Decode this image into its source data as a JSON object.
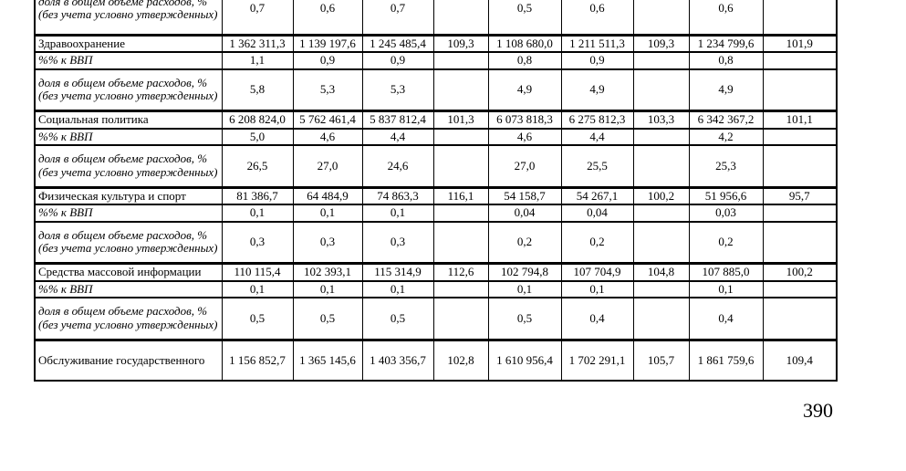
{
  "page": {
    "number": "390"
  },
  "table": {
    "rows": [
      {
        "kind": "share-partial",
        "label": "доля в общем объеме расходов, % (без учета условно утвержденных)",
        "cells": [
          "0,7",
          "0,6",
          "0,7",
          "",
          "0,5",
          "0,6",
          "",
          "0,6",
          ""
        ]
      },
      {
        "kind": "category",
        "label": "Здравоохранение",
        "cells": [
          "1 362 311,3",
          "1 139 197,6",
          "1 245 485,4",
          "109,3",
          "1 108 680,0",
          "1 211 511,3",
          "109,3",
          "1 234 799,6",
          "101,9"
        ]
      },
      {
        "kind": "gdp",
        "label": "%% к ВВП",
        "cells": [
          "1,1",
          "0,9",
          "0,9",
          "",
          "0,8",
          "0,9",
          "",
          "0,8",
          ""
        ]
      },
      {
        "kind": "share",
        "label": "доля в общем объеме расходов, % (без учета условно утвержденных)",
        "cells": [
          "5,8",
          "5,3",
          "5,3",
          "",
          "4,9",
          "4,9",
          "",
          "4,9",
          ""
        ]
      },
      {
        "kind": "category",
        "label": "Социальная политика",
        "cells": [
          "6 208 824,0",
          "5 762 461,4",
          "5 837 812,4",
          "101,3",
          "6 073 818,3",
          "6 275 812,3",
          "103,3",
          "6 342 367,2",
          "101,1"
        ]
      },
      {
        "kind": "gdp",
        "label": "%% к ВВП",
        "cells": [
          "5,0",
          "4,6",
          "4,4",
          "",
          "4,6",
          "4,4",
          "",
          "4,2",
          ""
        ]
      },
      {
        "kind": "share",
        "label": "доля в общем объеме расходов, % (без учета условно утвержденных)",
        "cells": [
          "26,5",
          "27,0",
          "24,6",
          "",
          "27,0",
          "25,5",
          "",
          "25,3",
          ""
        ]
      },
      {
        "kind": "category",
        "label": "Физическая культура и спорт",
        "cells": [
          "81 386,7",
          "64 484,9",
          "74 863,3",
          "116,1",
          "54 158,7",
          "54 267,1",
          "100,2",
          "51 956,6",
          "95,7"
        ]
      },
      {
        "kind": "gdp",
        "label": "%% к ВВП",
        "cells": [
          "0,1",
          "0,1",
          "0,1",
          "",
          "0,04",
          "0,04",
          "",
          "0,03",
          ""
        ]
      },
      {
        "kind": "share",
        "label": "доля в общем объеме расходов, % (без учета условно утвержденных)",
        "cells": [
          "0,3",
          "0,3",
          "0,3",
          "",
          "0,2",
          "0,2",
          "",
          "0,2",
          ""
        ]
      },
      {
        "kind": "category",
        "label": "Средства массовой информации",
        "cells": [
          "110 115,4",
          "102 393,1",
          "115 314,9",
          "112,6",
          "102 794,8",
          "107 704,9",
          "104,8",
          "107 885,0",
          "100,2"
        ]
      },
      {
        "kind": "gdp",
        "label": "%% к ВВП",
        "cells": [
          "0,1",
          "0,1",
          "0,1",
          "",
          "0,1",
          "0,1",
          "",
          "0,1",
          ""
        ]
      },
      {
        "kind": "share",
        "label": "доля в общем объеме расходов, % (без учета условно утвержденных)",
        "cells": [
          "0,5",
          "0,5",
          "0,5",
          "",
          "0,5",
          "0,4",
          "",
          "0,4",
          ""
        ]
      },
      {
        "kind": "category-last",
        "label": "Обслуживание государственного",
        "cells": [
          "1 156 852,7",
          "1 365 145,6",
          "1 403 356,7",
          "102,8",
          "1 610 956,4",
          "1 702 291,1",
          "105,7",
          "1 861 759,6",
          "109,4"
        ]
      }
    ]
  }
}
